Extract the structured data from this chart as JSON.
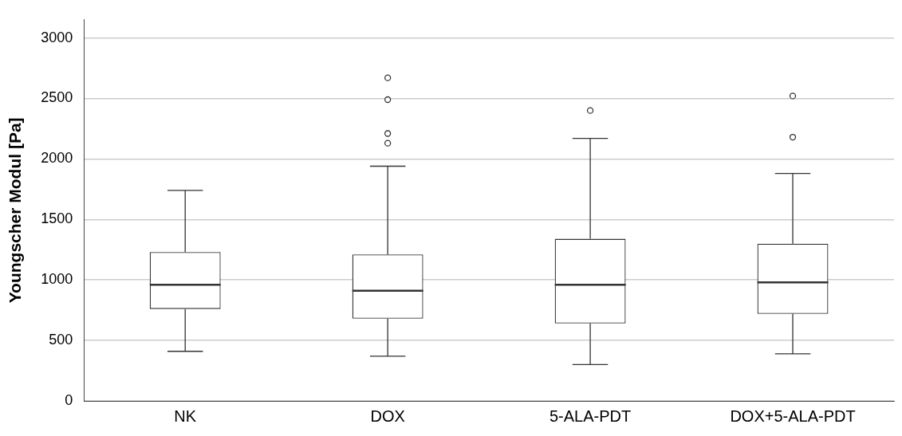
{
  "chart_data": {
    "type": "box",
    "ylabel": "Youngscher Modul [Pa]",
    "categories": [
      "NK",
      "DOX",
      "5-ALA-PDT",
      "DOX+5-ALA-PDT"
    ],
    "color": "#333333",
    "boxes": [
      {
        "low": 410,
        "q1": 760,
        "median": 960,
        "q3": 1230,
        "high": 1740
      },
      {
        "low": 370,
        "q1": 680,
        "median": 910,
        "q3": 1210,
        "high": 1940,
        "outliers": [
          2670,
          2490,
          2210,
          2130
        ]
      },
      {
        "low": 300,
        "q1": 640,
        "median": 960,
        "q3": 1340,
        "high": 2170,
        "outliers": [
          2400
        ]
      },
      {
        "low": 390,
        "q1": 720,
        "median": 980,
        "q3": 1300,
        "high": 1880,
        "outliers": [
          2520,
          2180
        ]
      }
    ],
    "ylim": [
      0,
      3150
    ],
    "yticks": [
      0,
      500,
      1000,
      1500,
      2000,
      2500,
      3000
    ],
    "grid": "y",
    "legend": false,
    "marker": "circle"
  }
}
